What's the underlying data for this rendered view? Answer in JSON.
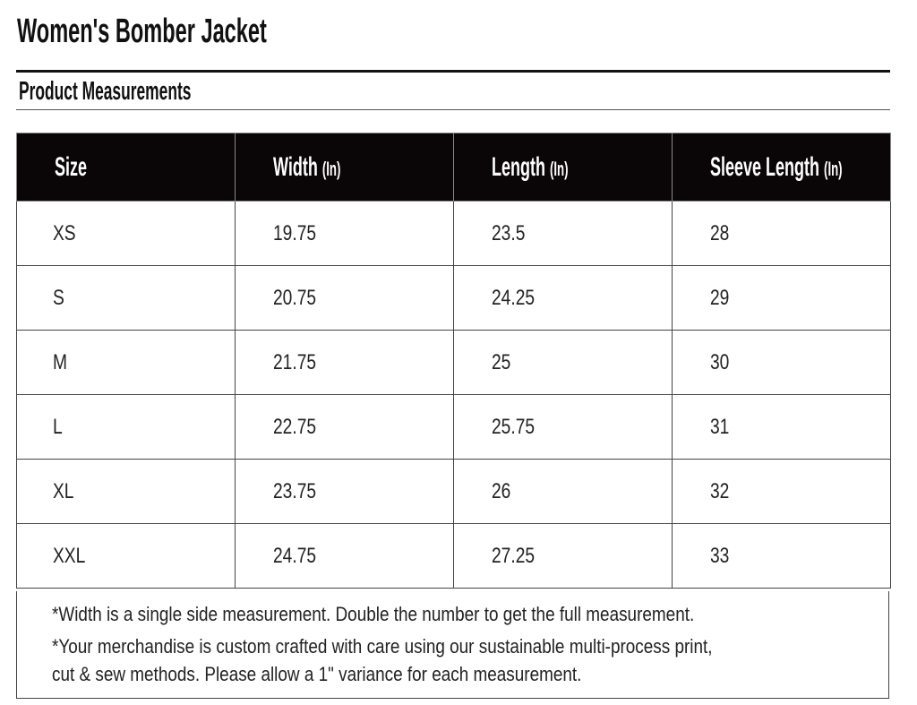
{
  "title": "Women's Bomber Jacket",
  "subtitle": "Product Measurements",
  "table": {
    "headers": [
      {
        "label": "Size",
        "unit": ""
      },
      {
        "label": "Width",
        "unit": "(In)"
      },
      {
        "label": "Length",
        "unit": "(In)"
      },
      {
        "label": "Sleeve Length",
        "unit": "(In)"
      }
    ],
    "rows": [
      [
        "XS",
        "19.75",
        "23.5",
        "28"
      ],
      [
        "S",
        "20.75",
        "24.25",
        "29"
      ],
      [
        "M",
        "21.75",
        "25",
        "30"
      ],
      [
        "L",
        "22.75",
        "25.75",
        "31"
      ],
      [
        "XL",
        "23.75",
        "26",
        "32"
      ],
      [
        "XXL",
        "24.75",
        "27.25",
        "33"
      ]
    ]
  },
  "notes": {
    "line1": "*Width is a single side measurement. Double the number to get the full measurement.",
    "line2a": "*Your merchandise is custom crafted with care using our sustainable multi-process print,",
    "line2b": "cut & sew methods. Please allow a 1\" variance for each measurement."
  }
}
